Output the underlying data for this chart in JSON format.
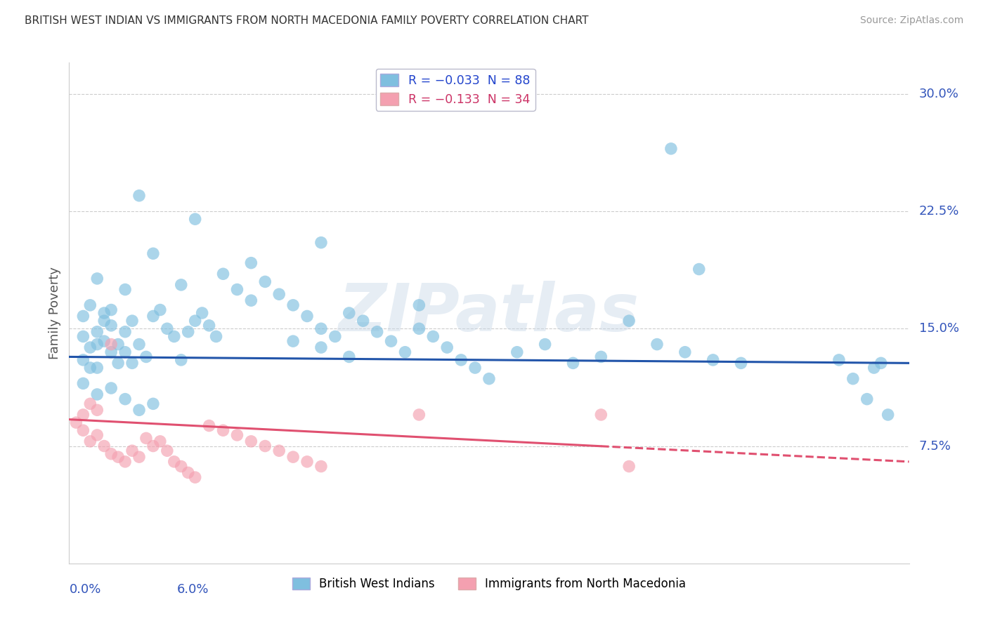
{
  "title": "BRITISH WEST INDIAN VS IMMIGRANTS FROM NORTH MACEDONIA FAMILY POVERTY CORRELATION CHART",
  "source": "Source: ZipAtlas.com",
  "ylabel": "Family Poverty",
  "legend1_label": "R = −0.033  N = 88",
  "legend2_label": "R = −0.133  N = 34",
  "blue_color": "#7fbfdf",
  "pink_color": "#f4a0b0",
  "blue_line_color": "#2255aa",
  "pink_line_color": "#e05070",
  "blue_R": -0.033,
  "blue_N": 88,
  "pink_R": -0.133,
  "pink_N": 34,
  "xlim_pct": [
    0.0,
    6.0
  ],
  "ylim_pct": [
    0.0,
    32.0
  ],
  "right_ytick_pct": [
    7.5,
    15.0,
    22.5,
    30.0
  ],
  "background_color": "#ffffff",
  "grid_color": "#cccccc",
  "watermark": "ZIPatlas",
  "blue_points": [
    [
      0.1,
      14.5
    ],
    [
      0.15,
      13.8
    ],
    [
      0.2,
      12.5
    ],
    [
      0.25,
      14.2
    ],
    [
      0.3,
      13.5
    ],
    [
      0.35,
      12.8
    ],
    [
      0.4,
      14.8
    ],
    [
      0.45,
      15.5
    ],
    [
      0.5,
      14.0
    ],
    [
      0.55,
      13.2
    ],
    [
      0.6,
      15.8
    ],
    [
      0.65,
      16.2
    ],
    [
      0.7,
      15.0
    ],
    [
      0.75,
      14.5
    ],
    [
      0.8,
      13.0
    ],
    [
      0.85,
      14.8
    ],
    [
      0.9,
      15.5
    ],
    [
      0.95,
      16.0
    ],
    [
      1.0,
      15.2
    ],
    [
      1.05,
      14.5
    ],
    [
      0.1,
      15.8
    ],
    [
      0.15,
      16.5
    ],
    [
      0.2,
      14.8
    ],
    [
      0.25,
      16.0
    ],
    [
      0.3,
      15.2
    ],
    [
      0.35,
      14.0
    ],
    [
      0.4,
      13.5
    ],
    [
      0.45,
      12.8
    ],
    [
      0.1,
      13.0
    ],
    [
      0.15,
      12.5
    ],
    [
      0.2,
      14.0
    ],
    [
      0.25,
      15.5
    ],
    [
      1.2,
      17.5
    ],
    [
      1.3,
      16.8
    ],
    [
      1.4,
      18.0
    ],
    [
      1.5,
      17.2
    ],
    [
      1.6,
      16.5
    ],
    [
      1.7,
      15.8
    ],
    [
      1.8,
      15.0
    ],
    [
      1.9,
      14.5
    ],
    [
      2.0,
      16.0
    ],
    [
      2.1,
      15.5
    ],
    [
      2.2,
      14.8
    ],
    [
      2.3,
      14.2
    ],
    [
      2.4,
      13.5
    ],
    [
      2.5,
      15.0
    ],
    [
      2.6,
      14.5
    ],
    [
      2.7,
      13.8
    ],
    [
      2.8,
      13.0
    ],
    [
      2.9,
      12.5
    ],
    [
      3.0,
      11.8
    ],
    [
      3.2,
      13.5
    ],
    [
      3.4,
      14.0
    ],
    [
      3.6,
      12.8
    ],
    [
      3.8,
      13.2
    ],
    [
      4.0,
      15.5
    ],
    [
      4.2,
      14.0
    ],
    [
      4.4,
      13.5
    ],
    [
      4.6,
      13.0
    ],
    [
      4.8,
      12.8
    ],
    [
      1.8,
      20.5
    ],
    [
      0.9,
      22.0
    ],
    [
      1.1,
      18.5
    ],
    [
      1.3,
      19.2
    ],
    [
      0.5,
      23.5
    ],
    [
      0.6,
      19.8
    ],
    [
      2.5,
      16.5
    ],
    [
      0.8,
      17.8
    ],
    [
      0.3,
      16.2
    ],
    [
      0.4,
      17.5
    ],
    [
      0.2,
      18.2
    ],
    [
      1.6,
      14.2
    ],
    [
      1.8,
      13.8
    ],
    [
      2.0,
      13.2
    ],
    [
      0.1,
      11.5
    ],
    [
      0.2,
      10.8
    ],
    [
      0.3,
      11.2
    ],
    [
      0.4,
      10.5
    ],
    [
      0.5,
      9.8
    ],
    [
      0.6,
      10.2
    ],
    [
      4.3,
      26.5
    ],
    [
      4.5,
      18.8
    ],
    [
      5.5,
      13.0
    ],
    [
      5.6,
      11.8
    ],
    [
      5.7,
      10.5
    ],
    [
      5.75,
      12.5
    ],
    [
      5.8,
      12.8
    ],
    [
      5.85,
      9.5
    ]
  ],
  "pink_points": [
    [
      0.05,
      9.0
    ],
    [
      0.1,
      8.5
    ],
    [
      0.15,
      7.8
    ],
    [
      0.2,
      8.2
    ],
    [
      0.25,
      7.5
    ],
    [
      0.3,
      7.0
    ],
    [
      0.35,
      6.8
    ],
    [
      0.4,
      6.5
    ],
    [
      0.45,
      7.2
    ],
    [
      0.5,
      6.8
    ],
    [
      0.55,
      8.0
    ],
    [
      0.6,
      7.5
    ],
    [
      0.65,
      7.8
    ],
    [
      0.7,
      7.2
    ],
    [
      0.75,
      6.5
    ],
    [
      0.8,
      6.2
    ],
    [
      0.85,
      5.8
    ],
    [
      0.1,
      9.5
    ],
    [
      0.15,
      10.2
    ],
    [
      0.2,
      9.8
    ],
    [
      0.9,
      5.5
    ],
    [
      1.0,
      8.8
    ],
    [
      1.1,
      8.5
    ],
    [
      1.2,
      8.2
    ],
    [
      1.3,
      7.8
    ],
    [
      1.4,
      7.5
    ],
    [
      1.5,
      7.2
    ],
    [
      1.6,
      6.8
    ],
    [
      1.7,
      6.5
    ],
    [
      1.8,
      6.2
    ],
    [
      0.3,
      14.0
    ],
    [
      2.5,
      9.5
    ],
    [
      3.8,
      9.5
    ],
    [
      4.0,
      6.2
    ]
  ]
}
